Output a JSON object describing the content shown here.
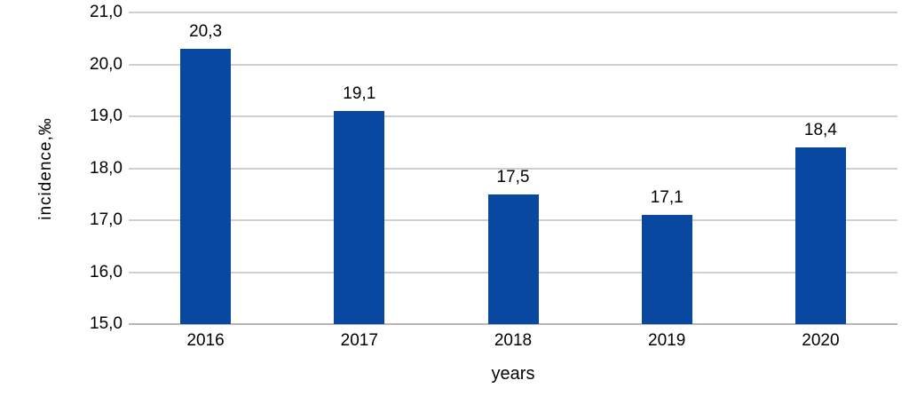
{
  "chart_data": {
    "type": "bar",
    "title": "",
    "categories": [
      "2016",
      "2017",
      "2018",
      "2019",
      "2020"
    ],
    "values": [
      20.3,
      19.1,
      17.5,
      17.1,
      18.4
    ],
    "value_labels": [
      "20,3",
      "19,1",
      "17,5",
      "17,1",
      "18,4"
    ],
    "xlabel": "years",
    "ylabel": "incidence,‰",
    "ylim": [
      15.0,
      21.0
    ],
    "yticks": [
      15,
      16,
      17,
      18,
      19,
      20,
      21
    ],
    "ytick_labels": [
      "15,0",
      "16,0",
      "17,0",
      "18,0",
      "19,0",
      "20,0",
      "21,0"
    ],
    "grid": true,
    "legend": "none",
    "bar_color": "#0848a0",
    "gridline_color": "#d0cece",
    "axis_line_color": "#b7b5b5",
    "text_color": "#000000"
  }
}
